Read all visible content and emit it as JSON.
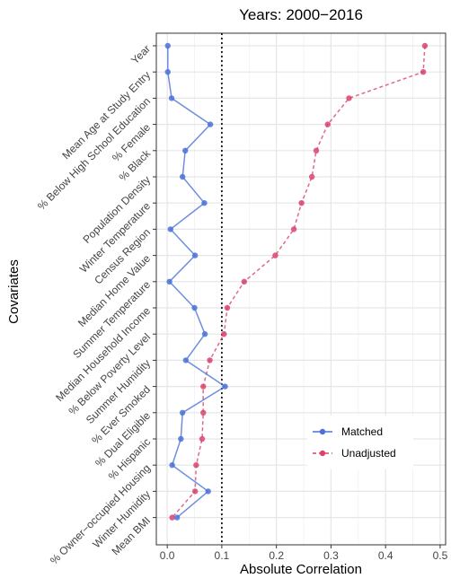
{
  "chart_data": {
    "type": "line",
    "title": "Years: 2000−2016",
    "xlabel": "Absolute Correlation",
    "ylabel": "Covariates",
    "xlim": [
      -0.02,
      0.51
    ],
    "x_ticks": [
      "0.0",
      "0.1",
      "0.2",
      "0.3",
      "0.4",
      "0.5"
    ],
    "x_tick_values": [
      0.0,
      0.1,
      0.2,
      0.3,
      0.4,
      0.5
    ],
    "reference_line": 0.1,
    "grid": true,
    "legend_position": "bottom-right",
    "categories": [
      "Year",
      "Mean Age at Study Entry",
      "% Below High School Education",
      "% Female",
      "% Black",
      "Population Density",
      "Winter Temperature",
      "Census Region",
      "Median Home Value",
      "Summer Temperature",
      "Median Household Income",
      "% Below Poverty Level",
      "Summer Humidity",
      "% Ever Smoked",
      "% Dual Eligible",
      "% Hispanic",
      "% Owner−occupied Housing",
      "Winter Humidity",
      "Mean BMI"
    ],
    "series": [
      {
        "name": "Matched",
        "color": "#4a72d8",
        "line_style": "solid",
        "values": [
          0.001,
          0.001,
          0.008,
          0.079,
          0.033,
          0.028,
          0.068,
          0.006,
          0.051,
          0.004,
          0.05,
          0.069,
          0.034,
          0.106,
          0.028,
          0.025,
          0.009,
          0.075,
          0.018
        ]
      },
      {
        "name": "Unadjusted",
        "color": "#d9446e",
        "line_style": "dashed",
        "values": [
          0.472,
          0.469,
          0.333,
          0.294,
          0.273,
          0.265,
          0.246,
          0.232,
          0.198,
          0.141,
          0.11,
          0.104,
          0.078,
          0.066,
          0.066,
          0.064,
          0.053,
          0.051,
          0.009
        ]
      }
    ]
  }
}
